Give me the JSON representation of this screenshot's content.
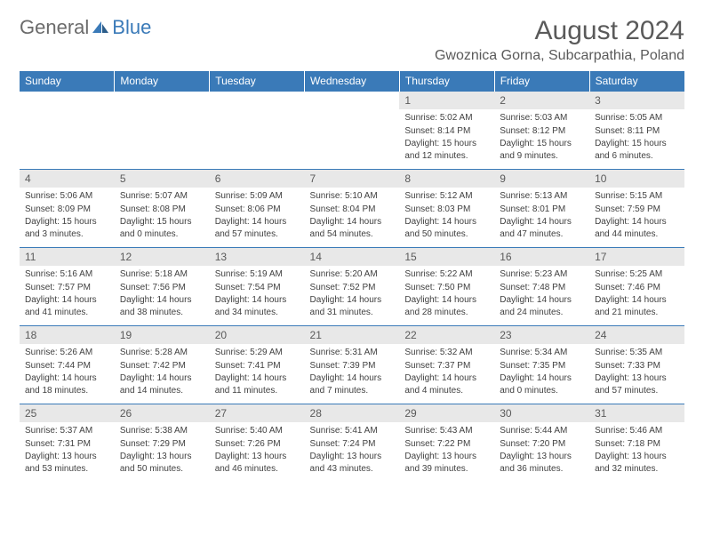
{
  "logo": {
    "text1": "General",
    "text2": "Blue"
  },
  "title": "August 2024",
  "location": "Gwoznica Gorna, Subcarpathia, Poland",
  "colors": {
    "header_bg": "#3a7ab8",
    "header_text": "#ffffff",
    "daynum_bg": "#e8e8e8",
    "text": "#5a5a5a",
    "border": "#3a7ab8"
  },
  "day_headers": [
    "Sunday",
    "Monday",
    "Tuesday",
    "Wednesday",
    "Thursday",
    "Friday",
    "Saturday"
  ],
  "weeks": [
    [
      null,
      null,
      null,
      null,
      {
        "num": "1",
        "sunrise": "5:02 AM",
        "sunset": "8:14 PM",
        "daylight": "15 hours and 12 minutes."
      },
      {
        "num": "2",
        "sunrise": "5:03 AM",
        "sunset": "8:12 PM",
        "daylight": "15 hours and 9 minutes."
      },
      {
        "num": "3",
        "sunrise": "5:05 AM",
        "sunset": "8:11 PM",
        "daylight": "15 hours and 6 minutes."
      }
    ],
    [
      {
        "num": "4",
        "sunrise": "5:06 AM",
        "sunset": "8:09 PM",
        "daylight": "15 hours and 3 minutes."
      },
      {
        "num": "5",
        "sunrise": "5:07 AM",
        "sunset": "8:08 PM",
        "daylight": "15 hours and 0 minutes."
      },
      {
        "num": "6",
        "sunrise": "5:09 AM",
        "sunset": "8:06 PM",
        "daylight": "14 hours and 57 minutes."
      },
      {
        "num": "7",
        "sunrise": "5:10 AM",
        "sunset": "8:04 PM",
        "daylight": "14 hours and 54 minutes."
      },
      {
        "num": "8",
        "sunrise": "5:12 AM",
        "sunset": "8:03 PM",
        "daylight": "14 hours and 50 minutes."
      },
      {
        "num": "9",
        "sunrise": "5:13 AM",
        "sunset": "8:01 PM",
        "daylight": "14 hours and 47 minutes."
      },
      {
        "num": "10",
        "sunrise": "5:15 AM",
        "sunset": "7:59 PM",
        "daylight": "14 hours and 44 minutes."
      }
    ],
    [
      {
        "num": "11",
        "sunrise": "5:16 AM",
        "sunset": "7:57 PM",
        "daylight": "14 hours and 41 minutes."
      },
      {
        "num": "12",
        "sunrise": "5:18 AM",
        "sunset": "7:56 PM",
        "daylight": "14 hours and 38 minutes."
      },
      {
        "num": "13",
        "sunrise": "5:19 AM",
        "sunset": "7:54 PM",
        "daylight": "14 hours and 34 minutes."
      },
      {
        "num": "14",
        "sunrise": "5:20 AM",
        "sunset": "7:52 PM",
        "daylight": "14 hours and 31 minutes."
      },
      {
        "num": "15",
        "sunrise": "5:22 AM",
        "sunset": "7:50 PM",
        "daylight": "14 hours and 28 minutes."
      },
      {
        "num": "16",
        "sunrise": "5:23 AM",
        "sunset": "7:48 PM",
        "daylight": "14 hours and 24 minutes."
      },
      {
        "num": "17",
        "sunrise": "5:25 AM",
        "sunset": "7:46 PM",
        "daylight": "14 hours and 21 minutes."
      }
    ],
    [
      {
        "num": "18",
        "sunrise": "5:26 AM",
        "sunset": "7:44 PM",
        "daylight": "14 hours and 18 minutes."
      },
      {
        "num": "19",
        "sunrise": "5:28 AM",
        "sunset": "7:42 PM",
        "daylight": "14 hours and 14 minutes."
      },
      {
        "num": "20",
        "sunrise": "5:29 AM",
        "sunset": "7:41 PM",
        "daylight": "14 hours and 11 minutes."
      },
      {
        "num": "21",
        "sunrise": "5:31 AM",
        "sunset": "7:39 PM",
        "daylight": "14 hours and 7 minutes."
      },
      {
        "num": "22",
        "sunrise": "5:32 AM",
        "sunset": "7:37 PM",
        "daylight": "14 hours and 4 minutes."
      },
      {
        "num": "23",
        "sunrise": "5:34 AM",
        "sunset": "7:35 PM",
        "daylight": "14 hours and 0 minutes."
      },
      {
        "num": "24",
        "sunrise": "5:35 AM",
        "sunset": "7:33 PM",
        "daylight": "13 hours and 57 minutes."
      }
    ],
    [
      {
        "num": "25",
        "sunrise": "5:37 AM",
        "sunset": "7:31 PM",
        "daylight": "13 hours and 53 minutes."
      },
      {
        "num": "26",
        "sunrise": "5:38 AM",
        "sunset": "7:29 PM",
        "daylight": "13 hours and 50 minutes."
      },
      {
        "num": "27",
        "sunrise": "5:40 AM",
        "sunset": "7:26 PM",
        "daylight": "13 hours and 46 minutes."
      },
      {
        "num": "28",
        "sunrise": "5:41 AM",
        "sunset": "7:24 PM",
        "daylight": "13 hours and 43 minutes."
      },
      {
        "num": "29",
        "sunrise": "5:43 AM",
        "sunset": "7:22 PM",
        "daylight": "13 hours and 39 minutes."
      },
      {
        "num": "30",
        "sunrise": "5:44 AM",
        "sunset": "7:20 PM",
        "daylight": "13 hours and 36 minutes."
      },
      {
        "num": "31",
        "sunrise": "5:46 AM",
        "sunset": "7:18 PM",
        "daylight": "13 hours and 32 minutes."
      }
    ]
  ]
}
